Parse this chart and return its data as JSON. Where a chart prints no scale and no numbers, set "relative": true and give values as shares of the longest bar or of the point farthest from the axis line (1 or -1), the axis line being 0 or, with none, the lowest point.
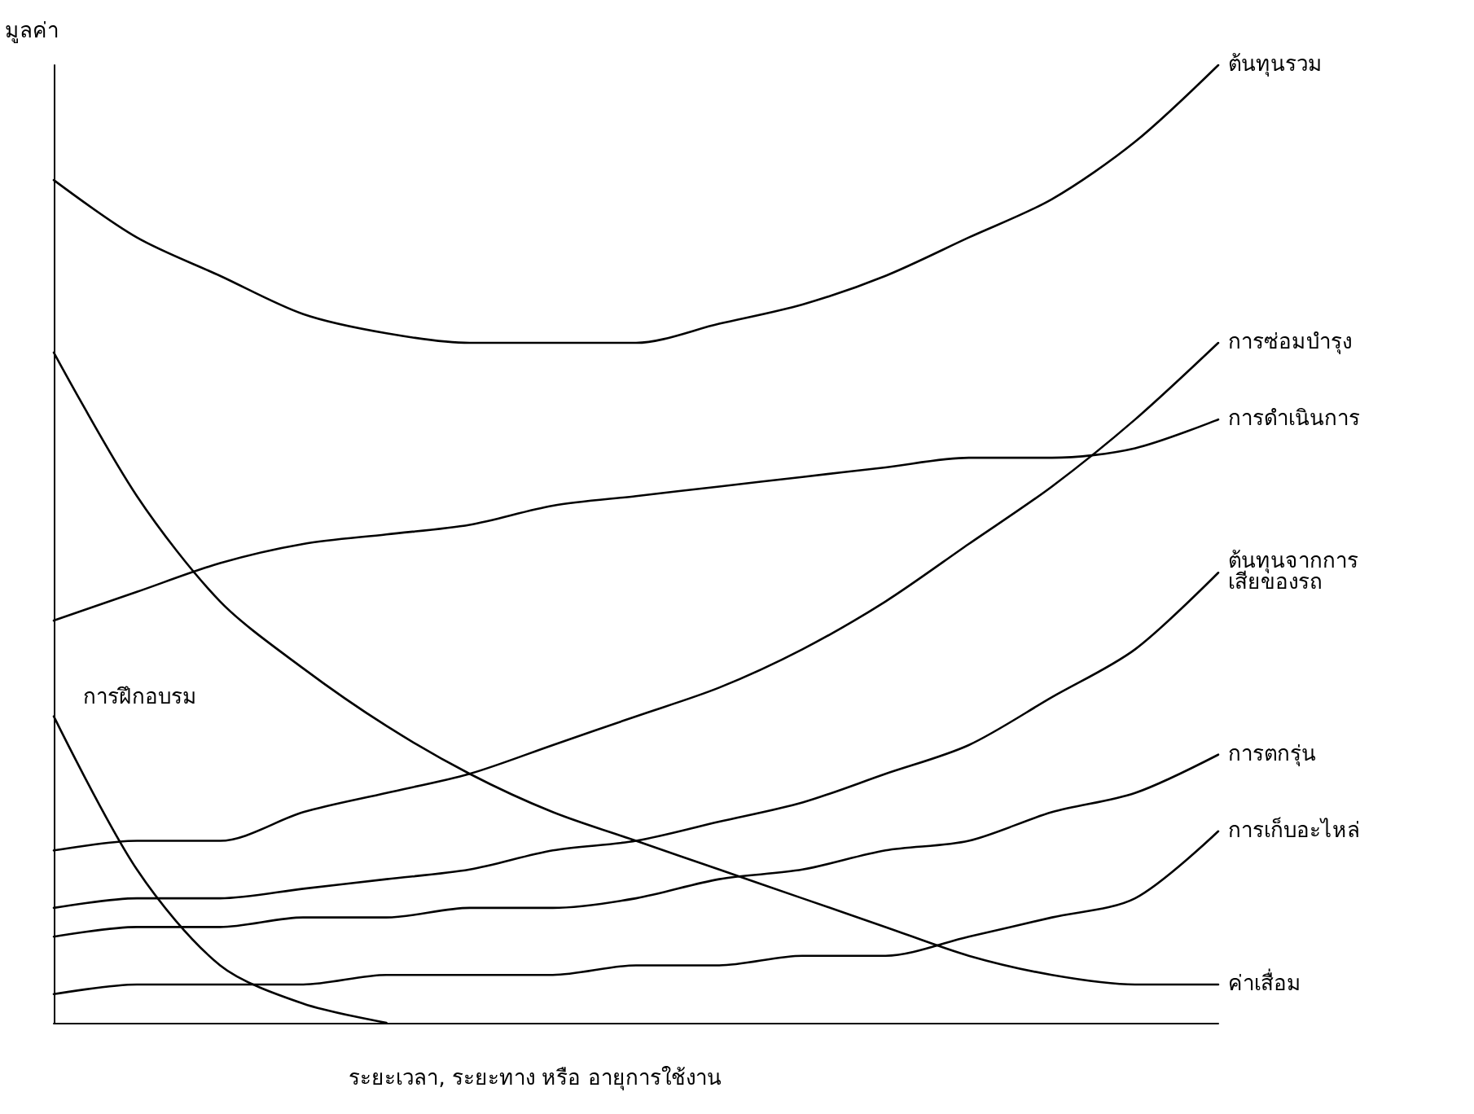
{
  "chart_data": {
    "type": "line",
    "relative": true,
    "xlabel": "ระยะเวลา, ระยะทาง หรือ อายุการใช้งาน",
    "ylabel": "มูลค่า",
    "grid": false,
    "legend": false,
    "marker": "none",
    "line_style": "solid",
    "categories": [
      null,
      null,
      null,
      null,
      null,
      null,
      null,
      null,
      null,
      null,
      null,
      null,
      null,
      null,
      null
    ],
    "series": [
      {
        "name": "ต้นทุนรวม",
        "color": "#000000",
        "values": [
          0.88,
          0.82,
          0.78,
          0.74,
          0.72,
          0.71,
          0.71,
          0.71,
          0.73,
          0.75,
          0.78,
          0.82,
          0.86,
          0.92,
          1
        ]
      },
      {
        "name": "การซ่อมบำรุง",
        "color": "#000000",
        "values": [
          0.18,
          0.19,
          0.19,
          0.22,
          0.24,
          0.26,
          0.29,
          0.32,
          0.35,
          0.39,
          0.44,
          0.5,
          0.56,
          0.63,
          0.71
        ]
      },
      {
        "name": "การดำเนินการ",
        "color": "#000000",
        "values": [
          0.42,
          0.45,
          0.48,
          0.5,
          0.51,
          0.52,
          0.54,
          0.55,
          0.56,
          0.57,
          0.58,
          0.59,
          0.59,
          0.6,
          0.63
        ]
      },
      {
        "name": "ต้นทุนจากการ\nเสียของรถ",
        "color": "#000000",
        "values": [
          0.12,
          0.13,
          0.13,
          0.14,
          0.15,
          0.16,
          0.18,
          0.19,
          0.21,
          0.23,
          0.26,
          0.29,
          0.34,
          0.39,
          0.47
        ]
      },
      {
        "name": "การตกรุ่น",
        "color": "#000000",
        "values": [
          0.09,
          0.1,
          0.1,
          0.11,
          0.11,
          0.12,
          0.12,
          0.13,
          0.15,
          0.16,
          0.18,
          0.19,
          0.22,
          0.24,
          0.28
        ]
      },
      {
        "name": "การเก็บอะไหล่",
        "color": "#000000",
        "values": [
          0.03,
          0.04,
          0.04,
          0.04,
          0.05,
          0.05,
          0.05,
          0.06,
          0.06,
          0.07,
          0.07,
          0.09,
          0.11,
          0.13,
          0.2
        ]
      },
      {
        "name": "ค่าเสื่อม",
        "color": "#000000",
        "values": [
          0.7,
          0.55,
          0.44,
          0.37,
          0.31,
          0.26,
          0.22,
          0.19,
          0.16,
          0.13,
          0.1,
          0.07,
          0.05,
          0.04,
          0.04
        ]
      },
      {
        "name": "การฝึกอบรม",
        "color": "#000000",
        "values": [
          0.32,
          0.16,
          0.06,
          0.02,
          0,
          null,
          null,
          null,
          null,
          null,
          null,
          null,
          null,
          null,
          null
        ]
      }
    ]
  }
}
